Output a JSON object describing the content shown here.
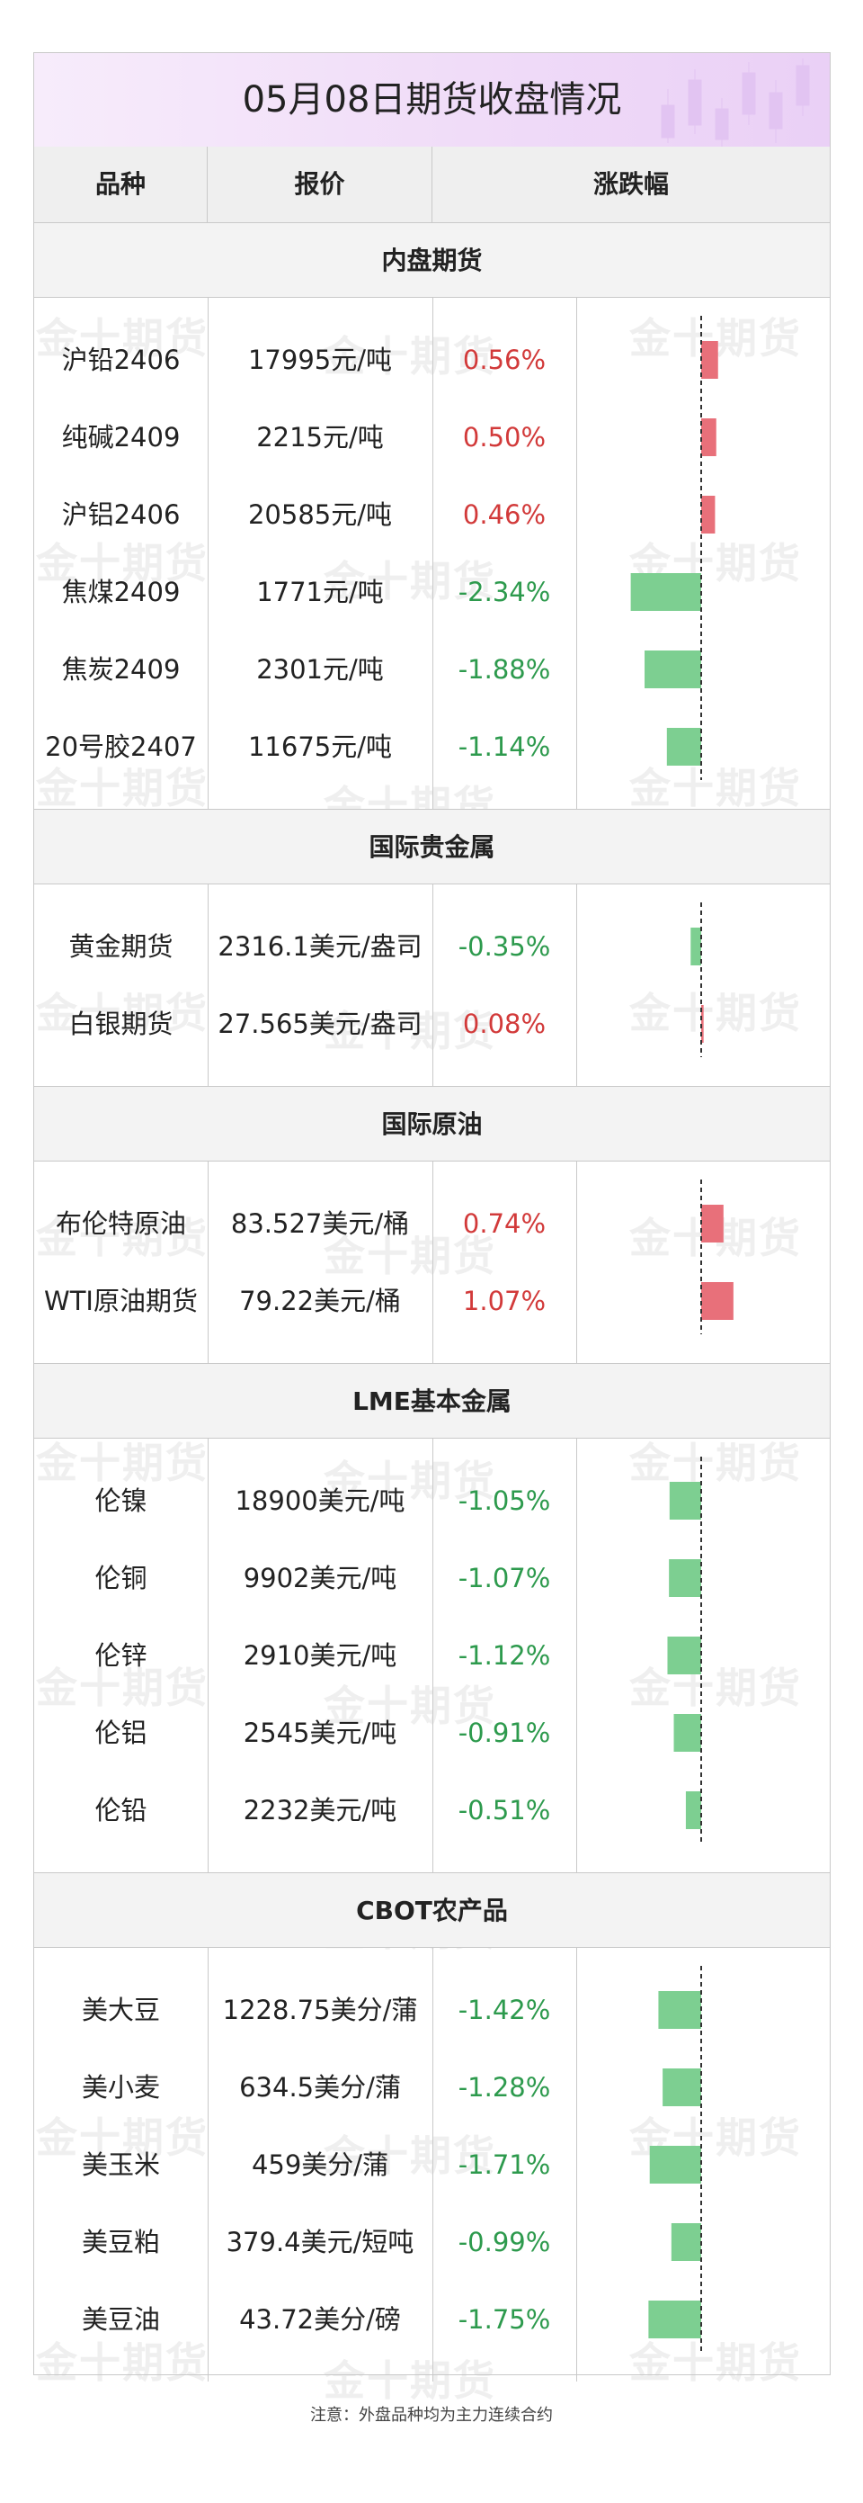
{
  "title": "05月08日期货收盘情况",
  "header": {
    "col_name": "品种",
    "col_price": "报价",
    "col_change": "涨跌幅"
  },
  "watermark": "金十期货",
  "colors": {
    "up": "#e8707a",
    "down": "#7dcf91",
    "up_text": "#d23a3a",
    "down_text": "#2d9a4d"
  },
  "chart_data": {
    "type": "bar",
    "orientation": "horizontal",
    "unit": "%",
    "sections": [
      {
        "name": "内盘期货",
        "items": [
          {
            "name": "沪铅2406",
            "price": "17995元/吨",
            "change": "0.56%",
            "value": 0.56
          },
          {
            "name": "纯碱2409",
            "price": "2215元/吨",
            "change": "0.50%",
            "value": 0.5
          },
          {
            "name": "沪铝2406",
            "price": "20585元/吨",
            "change": "0.46%",
            "value": 0.46
          },
          {
            "name": "焦煤2409",
            "price": "1771元/吨",
            "change": "-2.34%",
            "value": -2.34
          },
          {
            "name": "焦炭2409",
            "price": "2301元/吨",
            "change": "-1.88%",
            "value": -1.88
          },
          {
            "name": "20号胶2407",
            "price": "11675元/吨",
            "change": "-1.14%",
            "value": -1.14
          }
        ]
      },
      {
        "name": "国际贵金属",
        "items": [
          {
            "name": "黄金期货",
            "price": "2316.1美元/盎司",
            "change": "-0.35%",
            "value": -0.35
          },
          {
            "name": "白银期货",
            "price": "27.565美元/盎司",
            "change": "0.08%",
            "value": 0.08
          }
        ]
      },
      {
        "name": "国际原油",
        "items": [
          {
            "name": "布伦特原油",
            "price": "83.527美元/桶",
            "change": "0.74%",
            "value": 0.74
          },
          {
            "name": "WTI原油期货",
            "price": "79.22美元/桶",
            "change": "1.07%",
            "value": 1.07
          }
        ]
      },
      {
        "name": "LME基本金属",
        "items": [
          {
            "name": "伦镍",
            "price": "18900美元/吨",
            "change": "-1.05%",
            "value": -1.05
          },
          {
            "name": "伦铜",
            "price": "9902美元/吨",
            "change": "-1.07%",
            "value": -1.07
          },
          {
            "name": "伦锌",
            "price": "2910美元/吨",
            "change": "-1.12%",
            "value": -1.12
          },
          {
            "name": "伦铝",
            "price": "2545美元/吨",
            "change": "-0.91%",
            "value": -0.91
          },
          {
            "name": "伦铅",
            "price": "2232美元/吨",
            "change": "-0.51%",
            "value": -0.51
          }
        ]
      },
      {
        "name": "CBOT农产品",
        "items": [
          {
            "name": "美大豆",
            "price": "1228.75美分/蒲",
            "change": "-1.42%",
            "value": -1.42
          },
          {
            "name": "美小麦",
            "price": "634.5美分/蒲",
            "change": "-1.28%",
            "value": -1.28
          },
          {
            "name": "美玉米",
            "price": "459美分/蒲",
            "change": "-1.71%",
            "value": -1.71
          },
          {
            "name": "美豆粕",
            "price": "379.4美元/短吨",
            "change": "-0.99%",
            "value": -0.99
          },
          {
            "name": "美豆油",
            "price": "43.72美分/磅",
            "change": "-1.75%",
            "value": -1.75
          }
        ]
      }
    ]
  },
  "note": "注意：外盘品种均为主力连续合约"
}
